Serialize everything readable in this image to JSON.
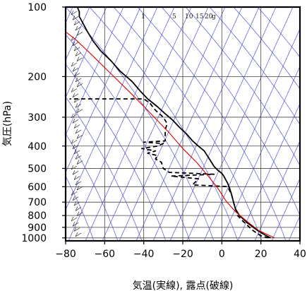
{
  "chart_data": {
    "type": "line",
    "title": "",
    "xlabel": "気温(実線), 露点(破線)",
    "ylabel": "気圧(hPa)",
    "xlim": [
      -80,
      40
    ],
    "ylim": [
      1030,
      100
    ],
    "y_scale": "log",
    "grid": true,
    "x_ticks": [
      "−80",
      "−60",
      "−40",
      "−20",
      "0",
      "20",
      "40"
    ],
    "x_tick_values": [
      -80,
      -60,
      -40,
      -20,
      0,
      20,
      40
    ],
    "y_ticks": [
      "100",
      "200",
      "300",
      "400",
      "500",
      "600",
      "700",
      "800",
      "900",
      "1000"
    ],
    "y_tick_values": [
      100,
      200,
      300,
      400,
      500,
      600,
      700,
      800,
      900,
      1000
    ],
    "mixing_ratio_labels": [
      "1",
      "5",
      "10",
      "15",
      "20",
      "g"
    ],
    "series": [
      {
        "style": "solid",
        "color": "#000000",
        "points": [
          [
            25,
            1000
          ],
          [
            22,
            970
          ],
          [
            18,
            925
          ],
          [
            13,
            860
          ],
          [
            9,
            800
          ],
          [
            7,
            750
          ],
          [
            6,
            700
          ],
          [
            5,
            650
          ],
          [
            4,
            610
          ],
          [
            3,
            580
          ],
          [
            2,
            560
          ],
          [
            1,
            540
          ],
          [
            0,
            525
          ],
          [
            -2,
            510
          ],
          [
            -4,
            490
          ],
          [
            -6,
            460
          ],
          [
            -9,
            420
          ],
          [
            -12,
            400
          ],
          [
            -15,
            380
          ],
          [
            -18,
            355
          ],
          [
            -22,
            330
          ],
          [
            -25,
            310
          ],
          [
            -29,
            290
          ],
          [
            -33,
            270
          ],
          [
            -38,
            250
          ],
          [
            -42,
            230
          ],
          [
            -46,
            210
          ],
          [
            -52,
            190
          ],
          [
            -57,
            170
          ],
          [
            -62,
            155
          ],
          [
            -66,
            140
          ],
          [
            -69,
            127
          ],
          [
            -71,
            118
          ],
          [
            -73,
            110
          ],
          [
            -73,
            105
          ],
          [
            -74,
            100
          ]
        ]
      },
      {
        "style": "dashed",
        "color": "#000000",
        "points": [
          [
            24,
            1000
          ],
          [
            20,
            980
          ],
          [
            16,
            930
          ],
          [
            11,
            850
          ],
          [
            8,
            800
          ],
          [
            6,
            700
          ],
          [
            5,
            650
          ],
          [
            3,
            600
          ],
          [
            -4,
            595
          ],
          [
            -15,
            590
          ],
          [
            -12,
            555
          ],
          [
            -26,
            540
          ],
          [
            -4,
            530
          ],
          [
            -27,
            520
          ],
          [
            -30,
            500
          ],
          [
            -31,
            470
          ],
          [
            -34,
            455
          ],
          [
            -33,
            440
          ],
          [
            -38,
            430
          ],
          [
            -34,
            420
          ],
          [
            -41,
            410
          ],
          [
            -33,
            400
          ],
          [
            -30,
            390
          ],
          [
            -40,
            385
          ],
          [
            -29,
            380
          ],
          [
            -29,
            360
          ],
          [
            -29,
            340
          ],
          [
            -28,
            320
          ],
          [
            -30,
            300
          ],
          [
            -34,
            280
          ],
          [
            -37,
            260
          ],
          [
            -40,
            250
          ],
          [
            -78,
            250
          ]
        ]
      },
      {
        "style": "solid",
        "color": "#dd0000",
        "points": [
          [
            27,
            1000
          ],
          [
            19,
            930
          ],
          [
            13,
            850
          ],
          [
            7,
            770
          ],
          [
            2,
            690
          ],
          [
            -2,
            610
          ],
          [
            -7,
            540
          ],
          [
            -13,
            470
          ],
          [
            -20,
            410
          ],
          [
            -27,
            350
          ],
          [
            -33,
            310
          ],
          [
            -38,
            280
          ],
          [
            -48,
            230
          ],
          [
            -58,
            190
          ],
          [
            -67,
            160
          ],
          [
            -75,
            138
          ],
          [
            -80,
            128
          ]
        ]
      }
    ]
  }
}
